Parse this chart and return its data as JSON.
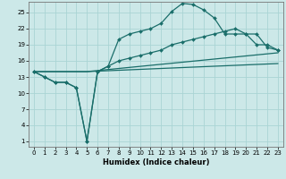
{
  "title": "",
  "xlabel": "Humidex (Indice chaleur)",
  "bg_color": "#cce8e8",
  "line_color": "#1a6e6a",
  "grid_color": "#aad4d4",
  "xlim": [
    -0.5,
    23.5
  ],
  "ylim": [
    0,
    27
  ],
  "xticks": [
    0,
    1,
    2,
    3,
    4,
    5,
    6,
    7,
    8,
    9,
    10,
    11,
    12,
    13,
    14,
    15,
    16,
    17,
    18,
    19,
    20,
    21,
    22,
    23
  ],
  "yticks": [
    1,
    4,
    7,
    10,
    13,
    16,
    19,
    22,
    25
  ],
  "line1_x": [
    0,
    1,
    2,
    3,
    4,
    5,
    6,
    7,
    8,
    9,
    10,
    11,
    12,
    13,
    14,
    15,
    16,
    17,
    18,
    19,
    20,
    21,
    22,
    23
  ],
  "line1_y": [
    14,
    13,
    12,
    12,
    11,
    1,
    14,
    15,
    20,
    21,
    21.5,
    22,
    23,
    25.2,
    26.7,
    26.5,
    25.5,
    24,
    21,
    21,
    21,
    19,
    19,
    18
  ],
  "line2_x": [
    0,
    1,
    2,
    3,
    4,
    5,
    6,
    7,
    8,
    9,
    10,
    11,
    12,
    13,
    14,
    15,
    16,
    17,
    18,
    19,
    20,
    21,
    22,
    23
  ],
  "line2_y": [
    14,
    13,
    12,
    12,
    11,
    1,
    14,
    15,
    16,
    16.5,
    17,
    17.5,
    18,
    19,
    19.5,
    20,
    20.5,
    21,
    21.5,
    22,
    21,
    21,
    18.5,
    18
  ],
  "line3_x": [
    0,
    5,
    23
  ],
  "line3_y": [
    14,
    14,
    17.5
  ],
  "line4_x": [
    0,
    5,
    23
  ],
  "line4_y": [
    14,
    14,
    15.5
  ]
}
